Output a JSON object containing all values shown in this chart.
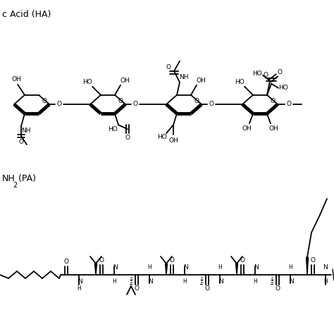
{
  "bg": "#ffffff",
  "fig_w": 4.74,
  "fig_h": 4.74,
  "dpi": 100,
  "label_A": "c Acid (HA)",
  "label_B": "NH",
  "label_B2": "2",
  "label_B3": " (PA)"
}
